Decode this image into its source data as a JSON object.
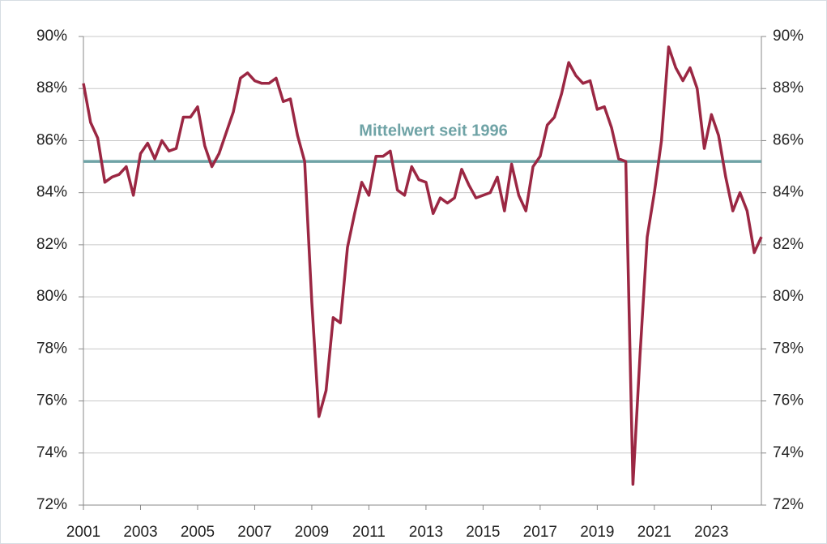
{
  "chart_data": {
    "type": "line",
    "x": [
      2001,
      2001.25,
      2001.5,
      2001.75,
      2002,
      2002.25,
      2002.5,
      2002.75,
      2003,
      2003.25,
      2003.5,
      2003.75,
      2004,
      2004.25,
      2004.5,
      2004.75,
      2005,
      2005.25,
      2005.5,
      2005.75,
      2006,
      2006.25,
      2006.5,
      2006.75,
      2007,
      2007.25,
      2007.5,
      2007.75,
      2008,
      2008.25,
      2008.5,
      2008.75,
      2009,
      2009.25,
      2009.5,
      2009.75,
      2010,
      2010.25,
      2010.5,
      2010.75,
      2011,
      2011.25,
      2011.5,
      2011.75,
      2012,
      2012.25,
      2012.5,
      2012.75,
      2013,
      2013.25,
      2013.5,
      2013.75,
      2014,
      2014.25,
      2014.5,
      2014.75,
      2015,
      2015.25,
      2015.5,
      2015.75,
      2016,
      2016.25,
      2016.5,
      2016.75,
      2017,
      2017.25,
      2017.5,
      2017.75,
      2018,
      2018.25,
      2018.5,
      2018.75,
      2019,
      2019.25,
      2019.5,
      2019.75,
      2020,
      2020.25,
      2020.5,
      2020.75,
      2021,
      2021.25,
      2021.5,
      2021.75,
      2022,
      2022.25,
      2022.5,
      2022.75,
      2023,
      2023.25,
      2023.5,
      2023.75,
      2024,
      2024.25,
      2024.5,
      2024.75
    ],
    "series": [
      {
        "color": "#9b2743",
        "values": [
          88.2,
          86.7,
          86.1,
          84.4,
          84.6,
          84.7,
          85.0,
          83.9,
          85.5,
          85.9,
          85.3,
          86.0,
          85.6,
          85.7,
          86.9,
          86.9,
          87.3,
          85.8,
          85.0,
          85.5,
          86.3,
          87.1,
          88.4,
          88.6,
          88.3,
          88.2,
          88.2,
          88.4,
          87.5,
          87.6,
          86.2,
          85.2,
          79.8,
          75.4,
          76.4,
          79.2,
          79.0,
          81.9,
          83.2,
          84.4,
          83.9,
          85.4,
          85.4,
          85.6,
          84.1,
          83.9,
          85.0,
          84.5,
          84.4,
          83.2,
          83.8,
          83.6,
          83.8,
          84.9,
          84.3,
          83.8,
          83.9,
          84.0,
          84.6,
          83.3,
          85.1,
          83.9,
          83.3,
          85.0,
          85.4,
          86.6,
          86.9,
          87.8,
          89.0,
          88.5,
          88.2,
          88.3,
          87.2,
          87.3,
          86.5,
          85.3,
          85.2,
          72.8,
          77.8,
          82.3,
          84.0,
          86.0,
          89.6,
          88.8,
          88.3,
          88.8,
          88.0,
          85.7,
          87.0,
          86.2,
          84.6,
          83.3,
          84.0,
          83.3,
          81.7,
          82.3
        ]
      }
    ],
    "reference_line": {
      "value": 85.2,
      "label": "Mittelwert seit 1996",
      "color": "#6fa3a6"
    },
    "xlim": [
      2001,
      2024.75
    ],
    "xticks": [
      2001,
      2003,
      2005,
      2007,
      2009,
      2011,
      2013,
      2015,
      2017,
      2019,
      2021,
      2023
    ],
    "ylim": [
      72,
      90
    ],
    "yticks": [
      {
        "value": 72,
        "label": "72%"
      },
      {
        "value": 74,
        "label": "74%"
      },
      {
        "value": 76,
        "label": "76%"
      },
      {
        "value": 78,
        "label": "78%"
      },
      {
        "value": 80,
        "label": "80%"
      },
      {
        "value": 82,
        "label": "82%"
      },
      {
        "value": 84,
        "label": "84%"
      },
      {
        "value": 86,
        "label": "86%"
      },
      {
        "value": 88,
        "label": "88%"
      },
      {
        "value": 90,
        "label": "90%"
      }
    ],
    "y2lim": [
      72,
      90
    ],
    "y2ticks": [
      {
        "value": 72,
        "label": "72%"
      },
      {
        "value": 74,
        "label": "74%"
      },
      {
        "value": 76,
        "label": "76%"
      },
      {
        "value": 78,
        "label": "78%"
      },
      {
        "value": 80,
        "label": "80%"
      },
      {
        "value": 82,
        "label": "82%"
      },
      {
        "value": 84,
        "label": "84%"
      },
      {
        "value": 86,
        "label": "86%"
      },
      {
        "value": 88,
        "label": "88%"
      },
      {
        "value": 90,
        "label": "90%"
      }
    ],
    "grid": true
  }
}
